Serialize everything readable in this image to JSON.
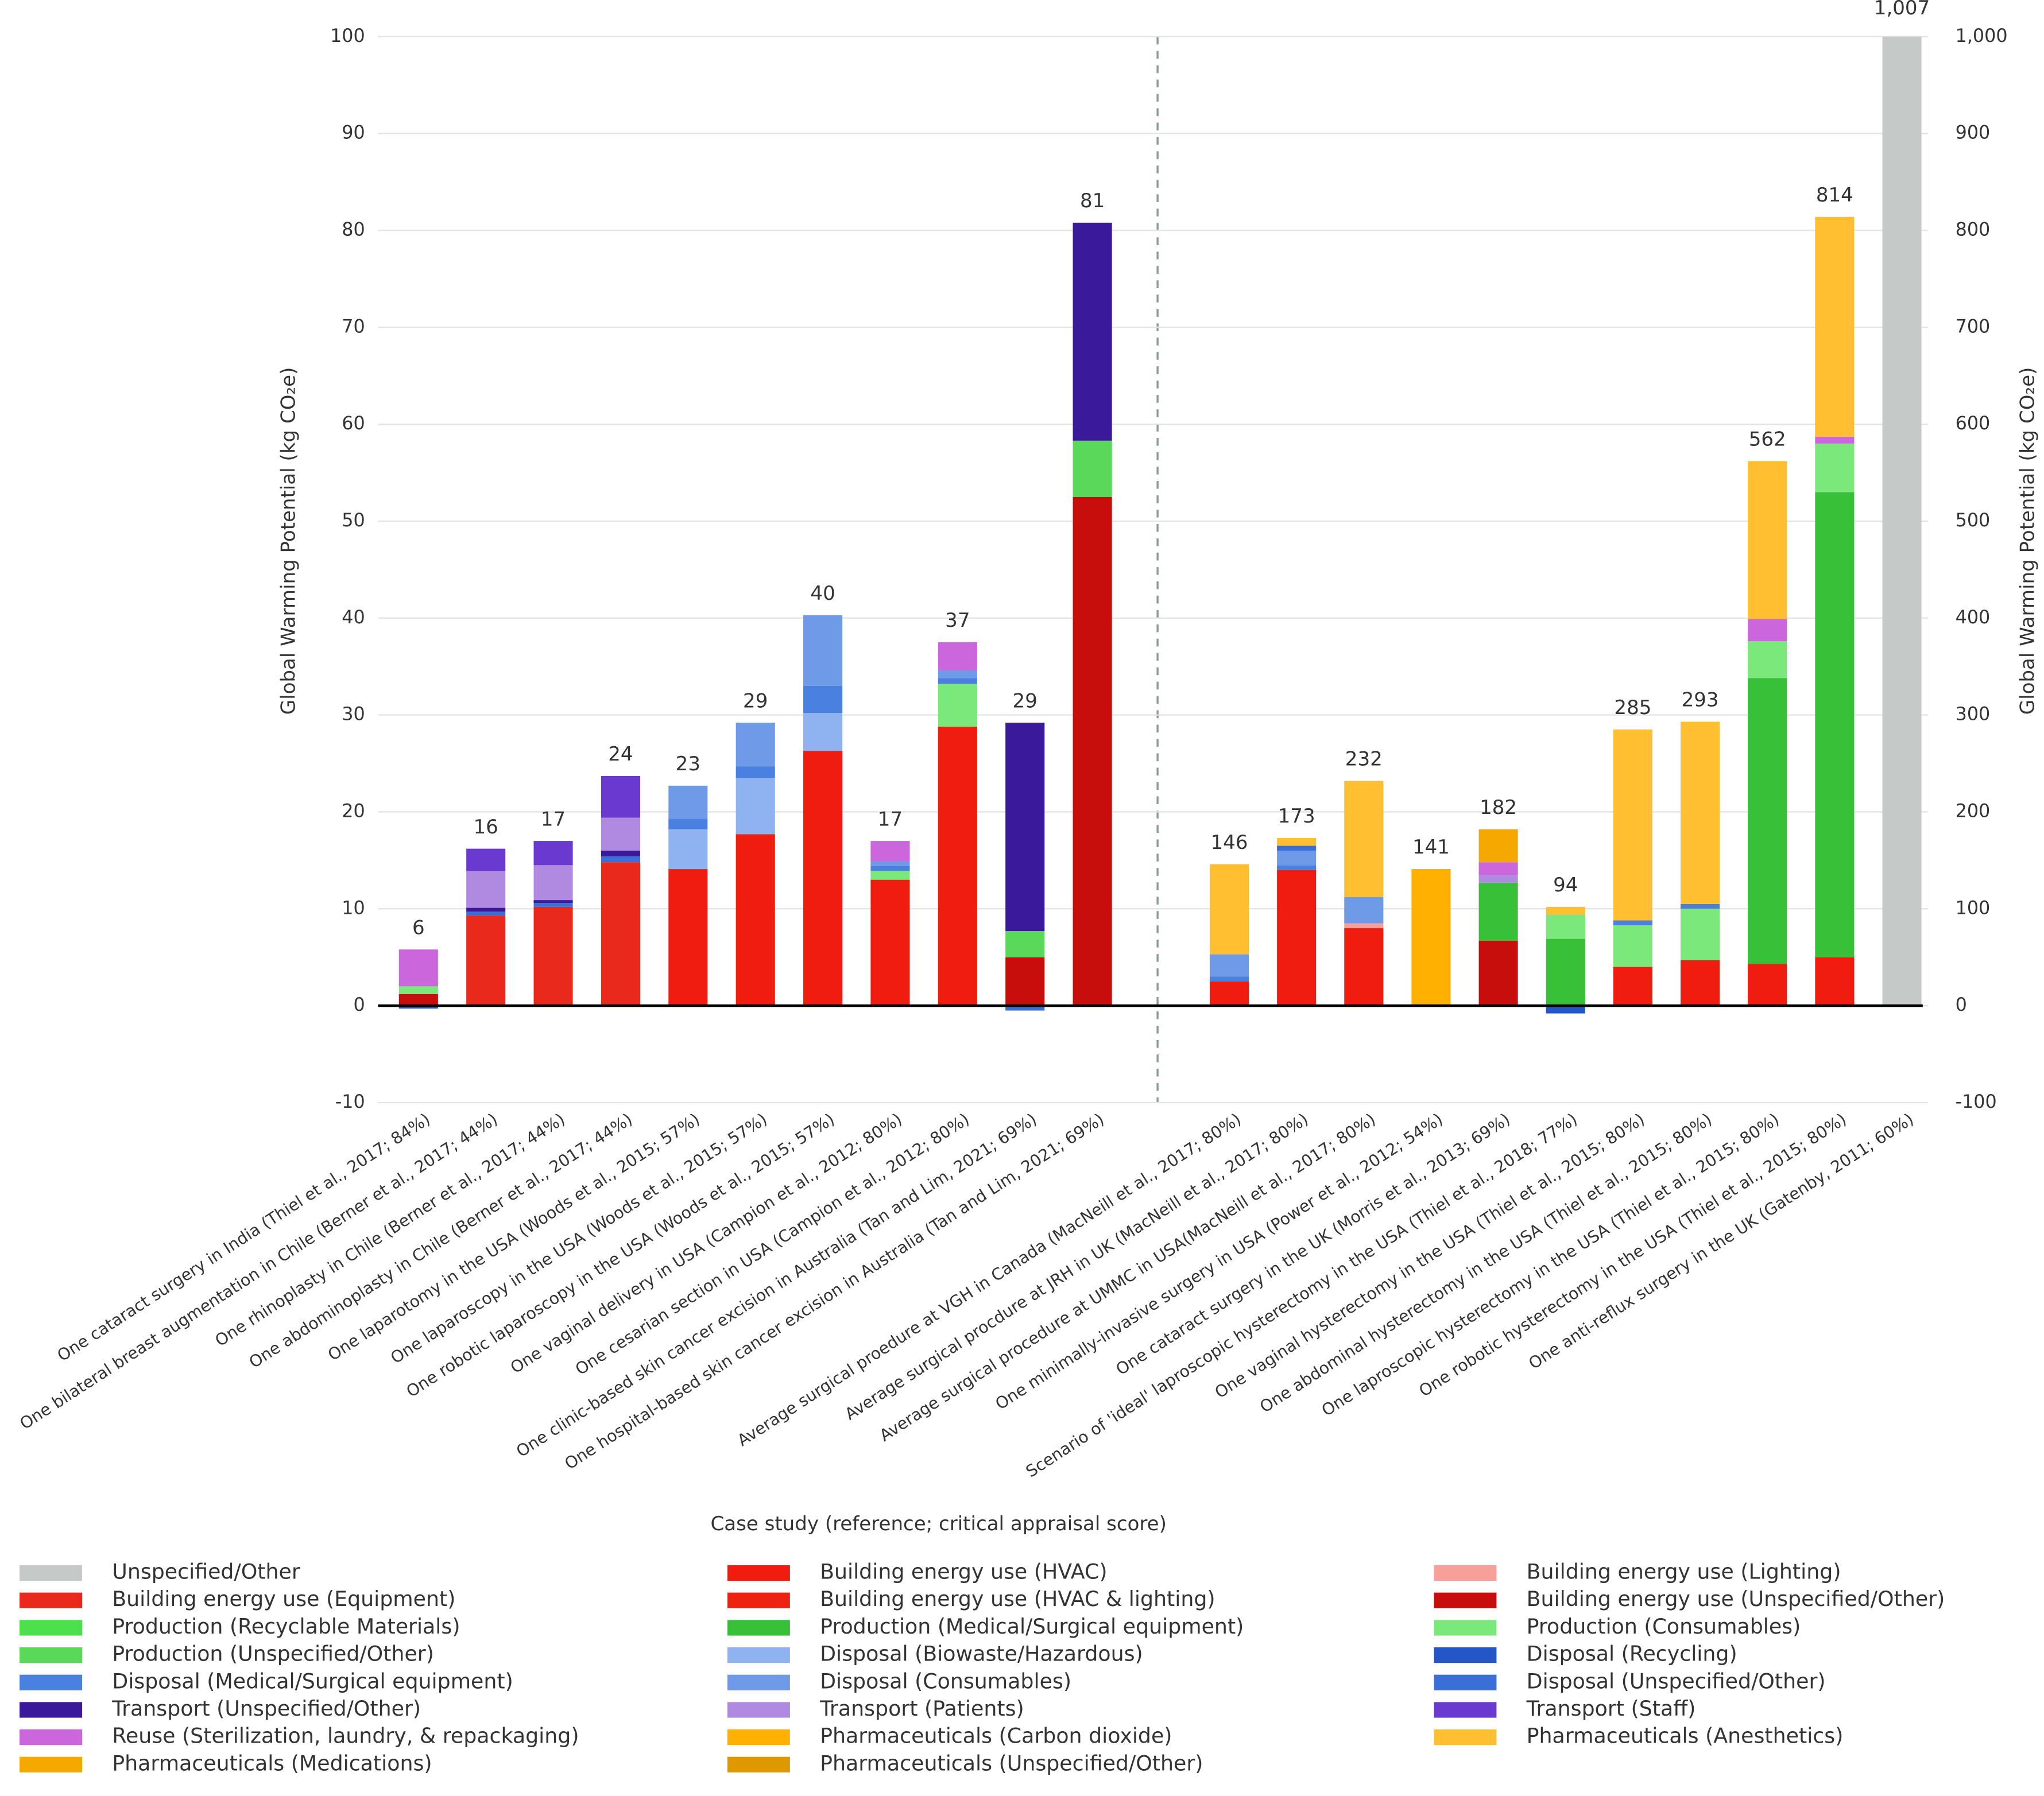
{
  "chart_data": [
    {
      "type": "bar",
      "stacked": true,
      "ylabel": "Global Warming Potential (kg CO₂e)",
      "xlabel": "Case study (reference; critical appraisal score)",
      "ylim": [
        -10,
        100
      ],
      "yticks": [
        -10,
        0,
        10,
        20,
        30,
        40,
        50,
        60,
        70,
        80,
        90,
        100
      ],
      "grid": true,
      "categories": [
        "One cataract surgery in India (Thiel et al., 2017; 84%)",
        "One bilateral breast augmentation in Chile (Berner et al., 2017; 44%)",
        "One rhinoplasty in Chile (Berner et al., 2017; 44%)",
        "One abdominoplasty in Chile (Berner et al., 2017; 44%)",
        "One laparotomy in the USA (Woods et al., 2015; 57%)",
        "One laparoscopy in the USA (Woods et al., 2015; 57%)",
        "One robotic laparoscopy in the USA (Woods et al., 2015; 57%)",
        "One vaginal delivery in USA (Campion et al., 2012; 80%)",
        "One cesarian section in USA (Campion et al., 2012; 80%)",
        "One clinic-based skin cancer excision in Australia (Tan and Lim, 2021; 69%)",
        "One hospital-based skin cancer excision in Australia (Tan and Lim, 2021; 69%)"
      ],
      "totals": [
        6,
        16,
        17,
        24,
        23,
        29,
        40,
        17,
        37,
        29,
        81
      ],
      "series": [
        {
          "name": "Unspecified/Other",
          "color": "#c5c9c7",
          "values": [
            null,
            null,
            null,
            null,
            null,
            null,
            null,
            null,
            null,
            null,
            null
          ]
        },
        {
          "name": "Building energy use (HVAC)",
          "color": "#f01c10",
          "values": [
            null,
            null,
            null,
            null,
            14.1,
            17.7,
            26.3,
            13.0,
            28.8,
            null,
            null
          ]
        },
        {
          "name": "Building energy use (Lighting)",
          "color": "#f7a09a",
          "values": [
            null,
            null,
            null,
            null,
            null,
            null,
            null,
            null,
            null,
            null,
            null
          ]
        },
        {
          "name": "Building energy use (Equipment)",
          "color": "#e8291c",
          "values": [
            null,
            9.3,
            10.2,
            14.8,
            null,
            null,
            null,
            null,
            null,
            null,
            null
          ]
        },
        {
          "name": "Building energy use (HVAC & lighting)",
          "color": "#ee2211",
          "values": [
            null,
            null,
            null,
            null,
            null,
            null,
            null,
            null,
            null,
            null,
            null
          ]
        },
        {
          "name": "Building energy use (Unspecified/Other)",
          "color": "#c80d0d",
          "values": [
            1.2,
            null,
            null,
            null,
            null,
            null,
            null,
            null,
            null,
            5.0,
            52.5
          ]
        },
        {
          "name": "Production (Recyclable Materials)",
          "color": "#4ce04c",
          "values": [
            null,
            null,
            null,
            null,
            null,
            null,
            null,
            null,
            null,
            null,
            null
          ]
        },
        {
          "name": "Production (Medical/Surgical equipment)",
          "color": "#38c038",
          "values": [
            null,
            null,
            null,
            null,
            null,
            null,
            null,
            null,
            null,
            null,
            null
          ]
        },
        {
          "name": "Production (Consumables)",
          "color": "#7ae87a",
          "values": [
            0.8,
            null,
            null,
            null,
            null,
            null,
            null,
            0.9,
            4.4,
            null,
            null
          ]
        },
        {
          "name": "Production (Unspecified/Other)",
          "color": "#5ad85a",
          "values": [
            null,
            null,
            null,
            null,
            null,
            null,
            null,
            null,
            null,
            2.7,
            5.8
          ]
        },
        {
          "name": "Disposal (Biowaste/Hazardous)",
          "color": "#8fb3f0",
          "values": [
            null,
            null,
            null,
            null,
            4.1,
            5.8,
            3.9,
            null,
            null,
            null,
            null
          ]
        },
        {
          "name": "Disposal (Recycling)",
          "color": "#2456c8",
          "values": [
            -0.3,
            null,
            null,
            null,
            null,
            null,
            null,
            null,
            null,
            null,
            null
          ]
        },
        {
          "name": "Disposal (Medical/Surgical equipment)",
          "color": "#4a80e0",
          "values": [
            null,
            null,
            null,
            null,
            1.1,
            1.2,
            2.8,
            0.5,
            0.6,
            null,
            null
          ]
        },
        {
          "name": "Disposal (Consumables)",
          "color": "#6f9ae8",
          "values": [
            null,
            null,
            null,
            null,
            3.4,
            4.5,
            7.3,
            0.5,
            0.8,
            null,
            null
          ]
        },
        {
          "name": "Disposal (Unspecified/Other)",
          "color": "#3b6fd8",
          "values": [
            null,
            0.4,
            0.4,
            0.6,
            null,
            null,
            null,
            null,
            null,
            -0.5,
            null
          ]
        },
        {
          "name": "Transport (Unspecified/Other)",
          "color": "#3a1a9a",
          "values": [
            null,
            0.4,
            0.3,
            0.6,
            null,
            null,
            null,
            null,
            null,
            21.5,
            22.5
          ]
        },
        {
          "name": "Transport (Patients)",
          "color": "#b08ae0",
          "values": [
            null,
            3.8,
            3.6,
            3.4,
            null,
            null,
            null,
            null,
            null,
            null,
            null
          ]
        },
        {
          "name": "Transport (Staff)",
          "color": "#6a3ad0",
          "values": [
            null,
            2.3,
            2.5,
            4.3,
            null,
            null,
            null,
            null,
            null,
            null,
            null
          ]
        },
        {
          "name": "Reuse (Sterilization, laundry, & repackaging)",
          "color": "#cc66dd",
          "values": [
            3.8,
            null,
            null,
            null,
            null,
            null,
            null,
            2.1,
            2.9,
            null,
            null
          ]
        },
        {
          "name": "Pharmaceuticals (Carbon dioxide)",
          "color": "#ffb000",
          "values": [
            null,
            null,
            null,
            null,
            null,
            null,
            null,
            null,
            null,
            null,
            null
          ]
        },
        {
          "name": "Pharmaceuticals (Anesthetics)",
          "color": "#ffbf30",
          "values": [
            null,
            null,
            null,
            null,
            null,
            null,
            null,
            null,
            null,
            null,
            null
          ]
        },
        {
          "name": "Pharmaceuticals (Medications)",
          "color": "#f5a800",
          "values": [
            null,
            null,
            null,
            null,
            null,
            null,
            null,
            null,
            null,
            null,
            null
          ]
        },
        {
          "name": "Pharmaceuticals (Unspecified/Other)",
          "color": "#e09800",
          "values": [
            null,
            null,
            null,
            null,
            null,
            null,
            null,
            null,
            null,
            null,
            null
          ]
        }
      ]
    },
    {
      "type": "bar",
      "stacked": true,
      "y2label": "Global Warming Potential (kg CO₂e)",
      "y2lim": [
        -100,
        1000
      ],
      "y2ticks": [
        -100,
        0,
        100,
        200,
        300,
        400,
        500,
        600,
        700,
        800,
        900,
        {
          "value": 1000,
          "label": "1,000"
        }
      ],
      "categories": [
        "Average surgical proedure at VGH in Canada (MacNeill et al., 2017; 80%)",
        "Average surgical procdure at JRH in UK (MacNeill et al., 2017; 80%)",
        "Average surgical procedure at UMMC in USA(MacNeill et al., 2017; 80%)",
        "One minimally-invasive surgery in USA (Power et al., 2012; 54%)",
        "One cataract surgery in the UK (Morris et al., 2013; 69%)",
        "Scenario of 'ideal' laproscopic hysterectomy in the USA (Thiel et al., 2018; 77%)",
        "One vaginal hysterectomy in the USA (Thiel et al., 2015; 80%)",
        "One abdominal hysterectomy in the USA (Thiel et al., 2015; 80%)",
        "One laproscopic hysterectomy in the USA (Thiel et al., 2015; 80%)",
        "One robotic hysterectomy in the USA (Thiel et al., 2015; 80%)",
        "One anti-reflux surgery in the UK (Gatenby, 2011; 60%)"
      ],
      "totals": [
        146,
        173,
        232,
        141,
        182,
        94,
        285,
        293,
        562,
        814,
        {
          "value": 1007,
          "label": "1,007"
        }
      ],
      "series": [
        {
          "axis": "y2",
          "values": [
            null,
            null,
            null,
            null,
            null,
            null,
            null,
            null,
            null,
            null,
            1007
          ]
        },
        {
          "axis": "y2",
          "values": [
            25,
            140,
            80,
            null,
            null,
            null,
            40,
            47,
            43,
            50,
            null
          ]
        },
        {
          "axis": "y2",
          "values": [
            null,
            null,
            5,
            null,
            null,
            null,
            null,
            null,
            null,
            null,
            null
          ]
        },
        {
          "axis": "y2",
          "values": [
            null,
            null,
            null,
            null,
            null,
            null,
            null,
            null,
            null,
            null,
            null
          ]
        },
        {
          "axis": "y2",
          "values": [
            null,
            null,
            null,
            null,
            null,
            null,
            null,
            null,
            null,
            null,
            null
          ]
        },
        {
          "axis": "y2",
          "values": [
            null,
            null,
            null,
            null,
            67,
            null,
            null,
            null,
            null,
            null,
            null
          ]
        },
        {
          "axis": "y2",
          "values": [
            null,
            null,
            null,
            null,
            null,
            null,
            null,
            null,
            null,
            null,
            null
          ]
        },
        {
          "axis": "y2",
          "values": [
            null,
            null,
            null,
            null,
            60,
            69,
            null,
            null,
            295,
            480,
            null
          ]
        },
        {
          "axis": "y2",
          "values": [
            null,
            null,
            null,
            null,
            null,
            25,
            43,
            53,
            38,
            50,
            null
          ]
        },
        {
          "axis": "y2",
          "values": [
            null,
            null,
            null,
            null,
            null,
            null,
            null,
            null,
            null,
            null,
            null
          ]
        },
        {
          "axis": "y2",
          "values": [
            null,
            null,
            null,
            null,
            null,
            null,
            null,
            null,
            null,
            null,
            null
          ]
        },
        {
          "axis": "y2",
          "values": [
            null,
            null,
            null,
            null,
            null,
            -8,
            null,
            null,
            null,
            null,
            null
          ]
        },
        {
          "axis": "y2",
          "values": [
            5,
            5,
            null,
            null,
            null,
            null,
            5,
            5,
            null,
            null,
            null
          ]
        },
        {
          "axis": "y2",
          "values": [
            23,
            15,
            27,
            null,
            null,
            null,
            null,
            null,
            null,
            null,
            null
          ]
        },
        {
          "axis": "y2",
          "values": [
            null,
            5,
            null,
            null,
            null,
            null,
            null,
            null,
            null,
            null,
            null
          ]
        },
        {
          "axis": "y2",
          "values": [
            null,
            null,
            null,
            null,
            null,
            null,
            null,
            null,
            null,
            null,
            null
          ]
        },
        {
          "axis": "y2",
          "values": [
            null,
            null,
            null,
            null,
            8,
            null,
            null,
            null,
            null,
            null,
            null
          ]
        },
        {
          "axis": "y2",
          "values": [
            null,
            null,
            null,
            null,
            null,
            null,
            null,
            null,
            null,
            null,
            null
          ]
        },
        {
          "axis": "y2",
          "values": [
            null,
            null,
            null,
            null,
            13,
            null,
            null,
            null,
            23,
            7,
            null
          ]
        },
        {
          "axis": "y2",
          "values": [
            null,
            null,
            null,
            141,
            null,
            null,
            null,
            null,
            null,
            null,
            null
          ]
        },
        {
          "axis": "y2",
          "values": [
            93,
            8,
            120,
            null,
            null,
            8,
            197,
            188,
            163,
            227,
            null
          ]
        },
        {
          "axis": "y2",
          "values": [
            null,
            null,
            null,
            null,
            34,
            null,
            null,
            null,
            null,
            null,
            null
          ]
        },
        {
          "axis": "y2",
          "values": [
            null,
            null,
            null,
            null,
            null,
            null,
            null,
            null,
            null,
            null,
            null
          ]
        }
      ]
    }
  ]
}
